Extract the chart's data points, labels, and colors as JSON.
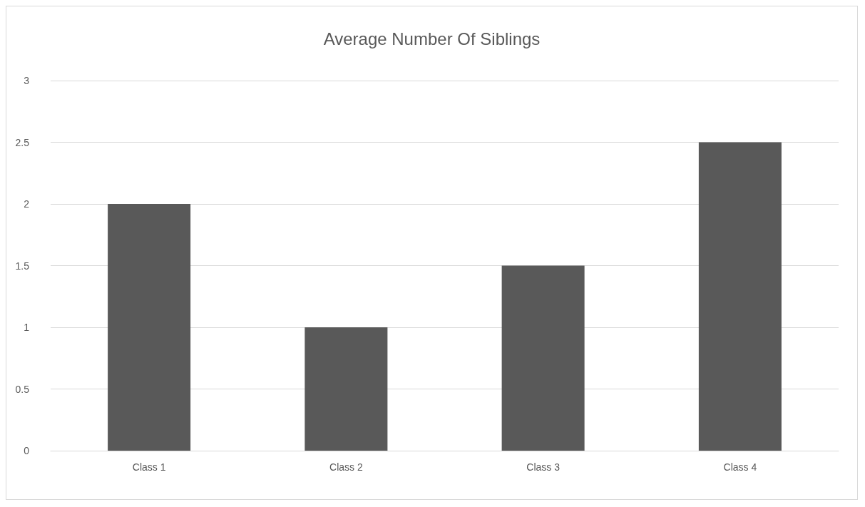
{
  "chart_data": {
    "type": "bar",
    "title": "Average Number Of Siblings",
    "categories": [
      "Class 1",
      "Class 2",
      "Class 3",
      "Class 4"
    ],
    "values": [
      2,
      1,
      1.5,
      2.5
    ],
    "color": "#595959",
    "ylim": [
      0,
      3
    ],
    "yticks": [
      0,
      0.5,
      1,
      1.5,
      2,
      2.5,
      3
    ],
    "grid": "y"
  }
}
